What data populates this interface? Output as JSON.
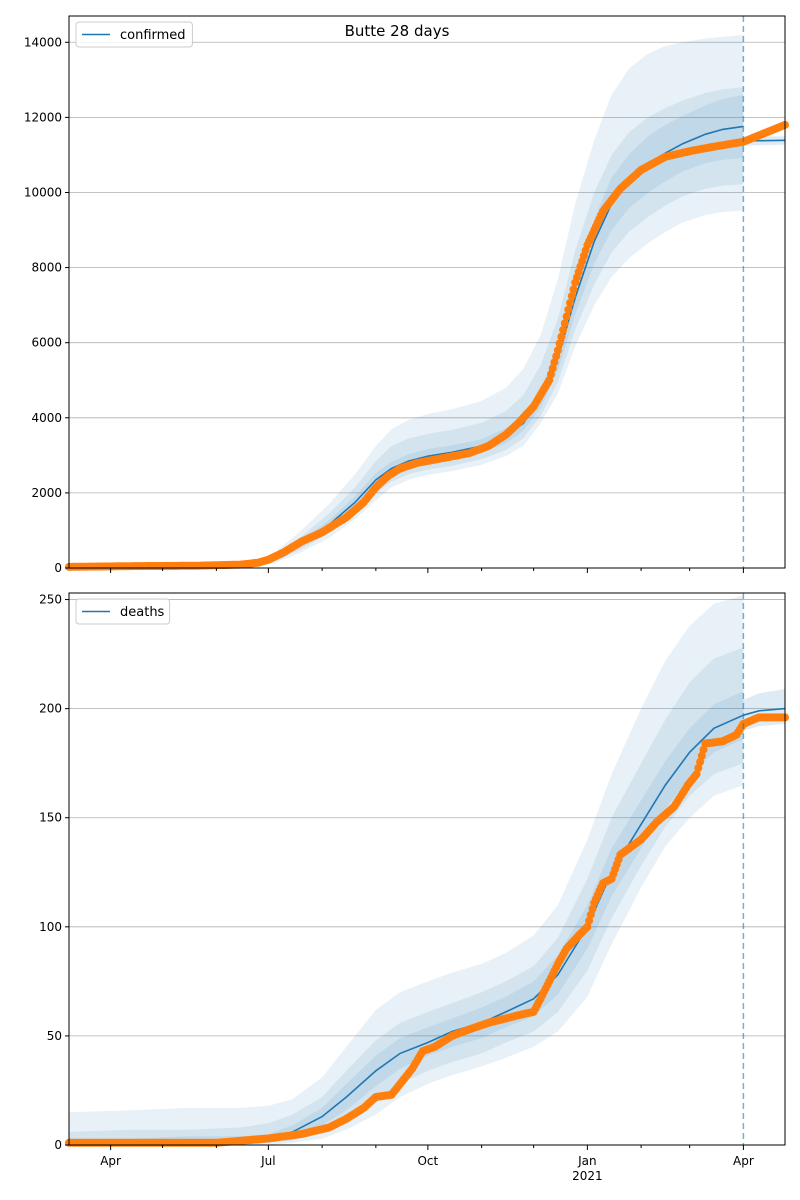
{
  "title": "Butte 28 days",
  "colors": {
    "model_line": "#1f77b4",
    "band": "#1f77b4",
    "observed": "#ff7f0e",
    "grid": "#b0b0b0",
    "forecast_marker": "#1f77b4"
  },
  "x_axis": {
    "type": "date",
    "range": [
      "2020-03-08",
      "2021-04-25"
    ],
    "major_ticks": [
      {
        "date": "2020-04-01",
        "label": "Apr",
        "sublabel": ""
      },
      {
        "date": "2020-07-01",
        "label": "Jul",
        "sublabel": ""
      },
      {
        "date": "2020-10-01",
        "label": "Oct",
        "sublabel": ""
      },
      {
        "date": "2021-01-01",
        "label": "Jan",
        "sublabel": "2021"
      },
      {
        "date": "2021-04-01",
        "label": "Apr",
        "sublabel": ""
      }
    ],
    "minor_ticks": [
      "2020-05-01",
      "2020-06-01",
      "2020-08-01",
      "2020-09-01",
      "2020-11-01",
      "2020-12-01",
      "2021-02-01",
      "2021-03-01"
    ]
  },
  "forecast_start": "2021-04-01",
  "chart_data": [
    {
      "type": "line",
      "legend": "confirmed",
      "legend_position": "top-left",
      "grid": "horizontal",
      "ylim": [
        0,
        14700
      ],
      "yticks": [
        0,
        2000,
        4000,
        6000,
        8000,
        10000,
        12000,
        14000
      ],
      "model": {
        "x": [
          "2020-03-08",
          "2020-04-15",
          "2020-05-15",
          "2020-06-10",
          "2020-06-25",
          "2020-07-05",
          "2020-07-20",
          "2020-08-05",
          "2020-08-20",
          "2020-09-01",
          "2020-09-10",
          "2020-09-20",
          "2020-10-01",
          "2020-10-15",
          "2020-11-01",
          "2020-11-15",
          "2020-11-25",
          "2020-12-05",
          "2020-12-15",
          "2020-12-25",
          "2021-01-05",
          "2021-01-15",
          "2021-01-25",
          "2021-02-05",
          "2021-02-15",
          "2021-02-25",
          "2021-03-10",
          "2021-03-20",
          "2021-04-01"
        ],
        "y": [
          20,
          30,
          50,
          80,
          130,
          250,
          650,
          1150,
          1750,
          2350,
          2650,
          2850,
          2980,
          3080,
          3250,
          3520,
          3850,
          4500,
          5600,
          7200,
          8700,
          9700,
          10300,
          10750,
          11050,
          11300,
          11550,
          11680,
          11760
        ]
      },
      "model_bands": [
        {
          "lower": [
            0,
            0,
            0,
            20,
            60,
            140,
            420,
            800,
            1300,
            1800,
            2150,
            2350,
            2480,
            2580,
            2750,
            2980,
            3250,
            3850,
            4650,
            5900,
            7000,
            7750,
            8250,
            8650,
            8950,
            9200,
            9400,
            9480,
            9520
          ],
          "upper": [
            60,
            80,
            110,
            160,
            230,
            420,
            1000,
            1700,
            2500,
            3250,
            3700,
            3950,
            4100,
            4230,
            4450,
            4800,
            5300,
            6200,
            7700,
            9700,
            11400,
            12600,
            13300,
            13700,
            13900,
            14000,
            14100,
            14150,
            14200
          ]
        },
        {
          "lower": [
            5,
            10,
            20,
            40,
            90,
            180,
            500,
            920,
            1450,
            2000,
            2300,
            2500,
            2620,
            2720,
            2900,
            3140,
            3450,
            4050,
            4950,
            6350,
            7550,
            8400,
            8950,
            9350,
            9650,
            9900,
            10100,
            10180,
            10220
          ],
          "upper": [
            40,
            55,
            80,
            120,
            180,
            340,
            830,
            1450,
            2150,
            2850,
            3250,
            3450,
            3570,
            3680,
            3870,
            4180,
            4600,
            5400,
            6650,
            8450,
            10000,
            11000,
            11600,
            12000,
            12250,
            12450,
            12650,
            12750,
            12800
          ],
          "note": ""
        },
        {
          "lower": [
            10,
            20,
            35,
            55,
            105,
            210,
            570,
            1030,
            1590,
            2170,
            2470,
            2670,
            2790,
            2890,
            3070,
            3320,
            3650,
            4270,
            5260,
            6750,
            8100,
            9000,
            9580,
            10000,
            10300,
            10560,
            10780,
            10870,
            10920
          ],
          "upper": [
            30,
            40,
            65,
            105,
            155,
            290,
            730,
            1270,
            1910,
            2530,
            2830,
            3030,
            3170,
            3270,
            3430,
            3720,
            4050,
            4730,
            5940,
            7650,
            9300,
            10400,
            11020,
            11500,
            11800,
            12040,
            12320,
            12490,
            12600
          ]
        }
      ],
      "forecast_model": {
        "x": [
          "2021-04-01",
          "2021-04-10",
          "2021-04-25"
        ],
        "y": [
          11370,
          11380,
          11390
        ]
      },
      "forecast_band": {
        "lower": [
          11250,
          11260,
          11270
        ],
        "upper": [
          11480,
          11490,
          11500
        ]
      },
      "observed": {
        "x": [
          "2020-03-08",
          "2020-04-15",
          "2020-05-20",
          "2020-06-15",
          "2020-06-25",
          "2020-07-01",
          "2020-07-10",
          "2020-07-20",
          "2020-08-01",
          "2020-08-15",
          "2020-08-25",
          "2020-09-01",
          "2020-09-08",
          "2020-09-15",
          "2020-09-25",
          "2020-10-10",
          "2020-10-25",
          "2020-11-05",
          "2020-11-15",
          "2020-11-22",
          "2020-12-01",
          "2020-12-10",
          "2020-12-15",
          "2020-12-20",
          "2020-12-25",
          "2021-01-01",
          "2021-01-10",
          "2021-01-20",
          "2021-02-01",
          "2021-02-15",
          "2021-03-01",
          "2021-03-15",
          "2021-04-01",
          "2021-04-10",
          "2021-04-25"
        ],
        "y": [
          30,
          50,
          60,
          90,
          140,
          220,
          420,
          700,
          950,
          1350,
          1750,
          2150,
          2450,
          2650,
          2800,
          2930,
          3060,
          3250,
          3550,
          3850,
          4300,
          5000,
          5800,
          6700,
          7600,
          8600,
          9500,
          10100,
          10600,
          10950,
          11100,
          11220,
          11350,
          11520,
          11800
        ]
      }
    },
    {
      "type": "line",
      "legend": "deaths",
      "legend_position": "top-left",
      "grid": "horizontal",
      "ylim": [
        0,
        253
      ],
      "yticks": [
        0,
        50,
        100,
        150,
        200,
        250
      ],
      "model": {
        "x": [
          "2020-03-08",
          "2020-04-15",
          "2020-05-15",
          "2020-06-15",
          "2020-07-01",
          "2020-07-15",
          "2020-08-01",
          "2020-08-15",
          "2020-09-01",
          "2020-09-15",
          "2020-10-01",
          "2020-10-15",
          "2020-11-01",
          "2020-11-15",
          "2020-12-01",
          "2020-12-15",
          "2021-01-01",
          "2021-01-15",
          "2021-02-01",
          "2021-02-15",
          "2021-03-01",
          "2021-03-15",
          "2021-04-01"
        ],
        "y": [
          1,
          1,
          2,
          2,
          3,
          6,
          13,
          22,
          34,
          42,
          47,
          52,
          56,
          61,
          67,
          78,
          100,
          125,
          147,
          165,
          180,
          191,
          197
        ]
      },
      "model_bands": [
        {
          "lower": [
            0,
            0,
            0,
            0,
            0,
            1,
            3,
            7,
            14,
            22,
            28,
            32,
            36,
            40,
            45,
            52,
            68,
            92,
            118,
            137,
            150,
            160,
            165
          ],
          "upper": [
            15,
            16,
            17,
            17,
            18,
            21,
            31,
            45,
            62,
            70,
            75,
            79,
            83,
            88,
            96,
            110,
            140,
            170,
            200,
            222,
            238,
            248,
            252
          ]
        },
        {
          "lower": [
            0,
            0,
            0,
            0,
            1,
            2,
            6,
            11,
            20,
            28,
            34,
            38,
            42,
            47,
            52,
            61,
            80,
            104,
            128,
            146,
            160,
            170,
            175
          ],
          "upper": [
            6,
            7,
            7,
            8,
            10,
            14,
            22,
            34,
            48,
            56,
            61,
            65,
            70,
            75,
            82,
            95,
            122,
            150,
            175,
            195,
            212,
            223,
            228
          ]
        },
        {
          "lower": [
            0,
            0,
            1,
            1,
            2,
            4,
            9,
            16,
            27,
            35,
            41,
            45,
            49,
            54,
            59,
            69,
            90,
            114,
            136,
            154,
            169,
            180,
            186
          ],
          "upper": [
            3,
            3,
            4,
            4,
            5,
            9,
            17,
            28,
            41,
            49,
            54,
            58,
            63,
            68,
            75,
            87,
            110,
            136,
            158,
            176,
            191,
            202,
            208
          ]
        }
      ],
      "forecast_model": {
        "x": [
          "2021-04-01",
          "2021-04-10",
          "2021-04-25"
        ],
        "y": [
          197,
          199,
          200
        ]
      },
      "forecast_band": {
        "lower": [
          190,
          192,
          193
        ],
        "upper": [
          204,
          207,
          209
        ]
      },
      "observed": {
        "x": [
          "2020-03-08",
          "2020-05-01",
          "2020-06-01",
          "2020-07-01",
          "2020-07-20",
          "2020-08-05",
          "2020-08-15",
          "2020-08-25",
          "2020-09-01",
          "2020-09-10",
          "2020-09-15",
          "2020-09-22",
          "2020-09-28",
          "2020-10-05",
          "2020-10-15",
          "2020-10-25",
          "2020-11-05",
          "2020-11-15",
          "2020-11-25",
          "2020-12-01",
          "2020-12-05",
          "2020-12-10",
          "2020-12-15",
          "2020-12-20",
          "2020-12-27",
          "2021-01-01",
          "2021-01-05",
          "2021-01-10",
          "2021-01-15",
          "2021-01-20",
          "2021-02-01",
          "2021-02-10",
          "2021-02-20",
          "2021-02-28",
          "2021-03-05",
          "2021-03-10",
          "2021-03-20",
          "2021-03-28",
          "2021-04-01",
          "2021-04-10",
          "2021-04-25"
        ],
        "y": [
          1,
          1,
          1,
          3,
          5,
          8,
          12,
          17,
          22,
          23,
          28,
          35,
          43,
          45,
          50,
          53,
          56,
          58,
          60,
          61,
          67,
          75,
          83,
          90,
          96,
          100,
          111,
          120,
          122,
          133,
          140,
          148,
          155,
          165,
          170,
          184,
          185,
          188,
          193,
          196,
          196
        ]
      }
    }
  ]
}
